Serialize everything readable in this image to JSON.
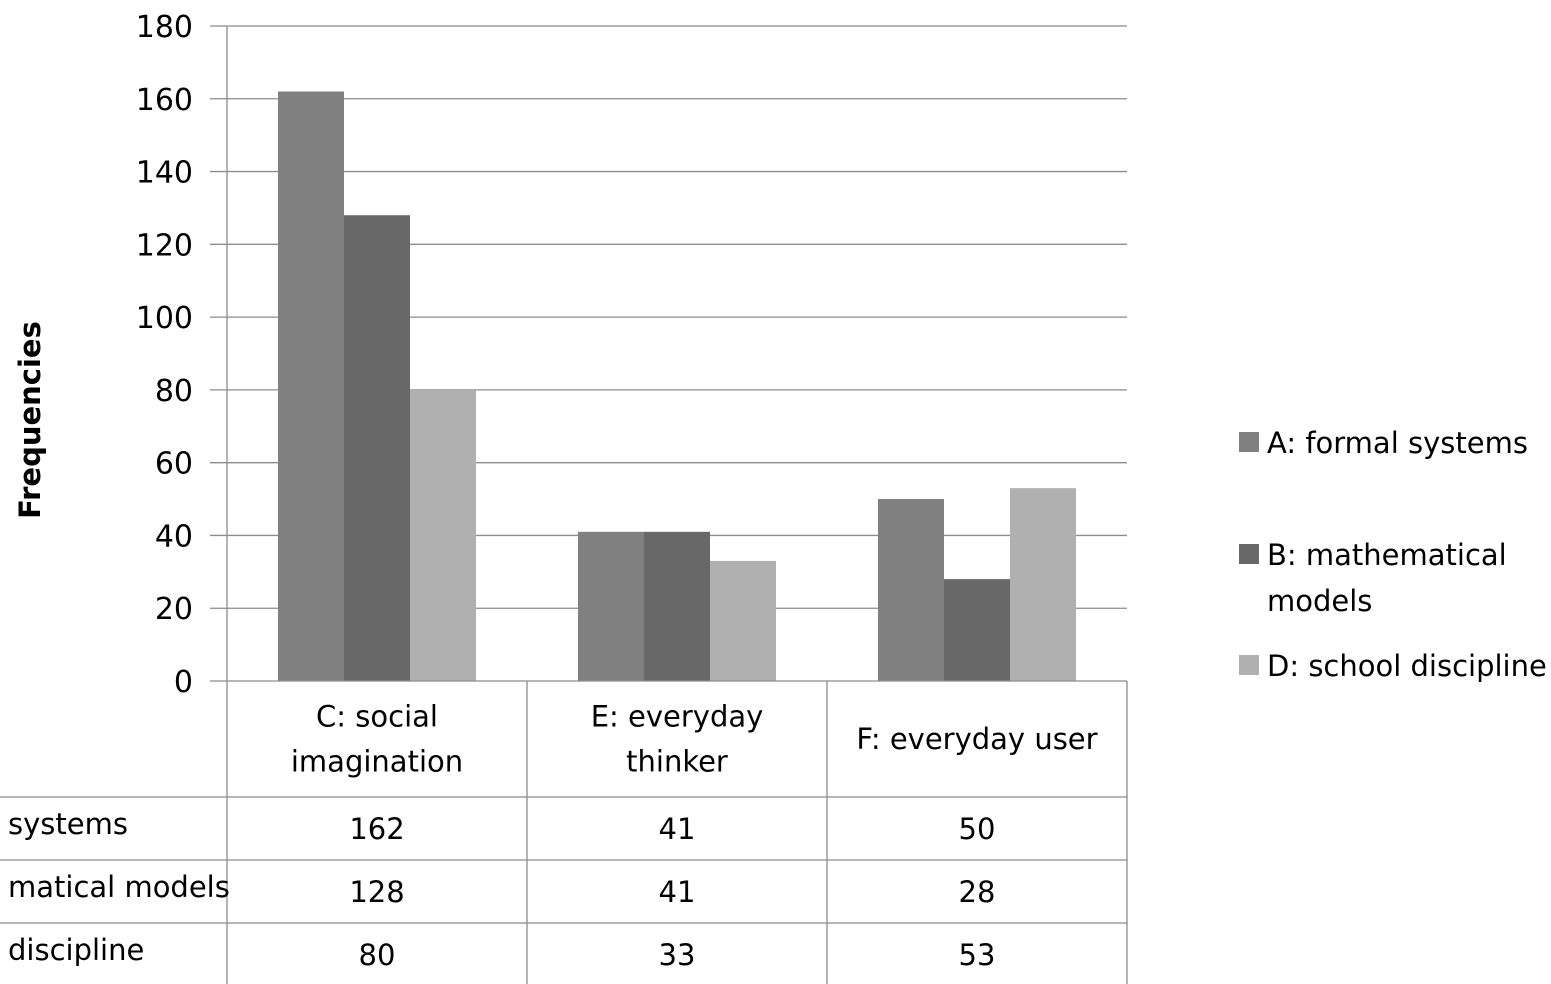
{
  "chart_data": {
    "type": "bar",
    "ylabel": "Frequencies",
    "ylim": [
      0,
      180
    ],
    "yticks": [
      0,
      20,
      40,
      60,
      80,
      100,
      120,
      140,
      160,
      180
    ],
    "grid": true,
    "legend_position": "right",
    "categories": [
      [
        "C: social",
        "imagination"
      ],
      [
        "E: everyday",
        "thinker"
      ],
      [
        "F: everyday user"
      ]
    ],
    "series": [
      {
        "name": "A: formal systems",
        "legend_lines": [
          "A: formal systems"
        ],
        "table_label": "systems",
        "color": "#808080",
        "values": [
          162,
          41,
          50
        ]
      },
      {
        "name": "B: mathematical models",
        "legend_lines": [
          "B: mathematical",
          "models"
        ],
        "table_label": "matical models",
        "color": "#686868",
        "values": [
          128,
          41,
          28
        ]
      },
      {
        "name": "D: school discipline",
        "legend_lines": [
          "D: school discipline"
        ],
        "table_label": "discipline",
        "color": "#b0b0b0",
        "values": [
          80,
          33,
          53
        ]
      }
    ]
  }
}
